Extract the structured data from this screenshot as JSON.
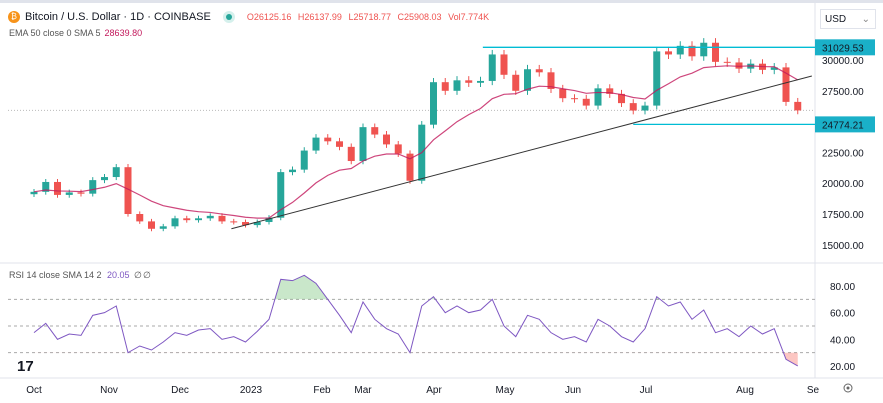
{
  "header": {
    "symbol": "Bitcoin / U.S. Dollar · 1D · COINBASE",
    "logo_letter": "₿",
    "open": "O26125.16",
    "high": "H26137.99",
    "low": "L25718.77",
    "close": "C25908.03",
    "volume": "Vol7.774K"
  },
  "ema_legend": {
    "label": "EMA 50 close 0 SMA 5",
    "value": "28639.80"
  },
  "currency_select": {
    "value": "USD"
  },
  "colors": {
    "up": "#26a69a",
    "down": "#ef5350",
    "ema": "#c2185b",
    "levels": "#00bcd4",
    "trendline": "#333333",
    "rsi": "#7e57c2"
  },
  "chart_data": [
    {
      "type": "candlestick",
      "title": "Bitcoin / U.S. Dollar · 1D · COINBASE",
      "x": [
        "2022-10-01",
        "2022-10-06",
        "2022-10-11",
        "2022-10-16",
        "2022-10-21",
        "2022-10-26",
        "2022-10-31",
        "2022-11-05",
        "2022-11-10",
        "2022-11-15",
        "2022-11-20",
        "2022-11-25",
        "2022-11-30",
        "2022-12-05",
        "2022-12-10",
        "2022-12-15",
        "2022-12-20",
        "2022-12-25",
        "2022-12-30",
        "2023-01-04",
        "2023-01-09",
        "2023-01-14",
        "2023-01-19",
        "2023-01-24",
        "2023-01-29",
        "2023-02-03",
        "2023-02-08",
        "2023-02-13",
        "2023-02-18",
        "2023-02-23",
        "2023-02-28",
        "2023-03-05",
        "2023-03-10",
        "2023-03-15",
        "2023-03-20",
        "2023-03-25",
        "2023-03-30",
        "2023-04-04",
        "2023-04-09",
        "2023-04-14",
        "2023-04-19",
        "2023-04-24",
        "2023-04-29",
        "2023-05-04",
        "2023-05-09",
        "2023-05-14",
        "2023-05-19",
        "2023-05-24",
        "2023-05-29",
        "2023-06-03",
        "2023-06-08",
        "2023-06-13",
        "2023-06-18",
        "2023-06-23",
        "2023-06-28",
        "2023-07-03",
        "2023-07-08",
        "2023-07-13",
        "2023-07-18",
        "2023-07-23",
        "2023-07-28",
        "2023-08-02",
        "2023-08-07",
        "2023-08-12",
        "2023-08-17",
        "2023-08-22"
      ],
      "close": [
        19300,
        20100,
        19050,
        19250,
        19150,
        20250,
        20500,
        21300,
        17500,
        16900,
        16300,
        16500,
        17150,
        17000,
        17150,
        17350,
        16900,
        16850,
        16600,
        16850,
        17200,
        20900,
        21100,
        22650,
        23700,
        23400,
        22950,
        21800,
        24550,
        23950,
        23150,
        22400,
        20200,
        24750,
        28200,
        27500,
        28350,
        28150,
        28300,
        30450,
        28800,
        27500,
        29250,
        29000,
        27650,
        26900,
        26850,
        26300,
        27700,
        27250,
        26500,
        25900,
        26300,
        30700,
        30450,
        31150,
        30300,
        31400,
        29850,
        29800,
        29300,
        29700,
        29200,
        29400,
        26600,
        25908.03
      ],
      "ylim": [
        14000,
        32500
      ],
      "y_ticks": [
        "30000.00",
        "27500.00",
        "22500.00",
        "20000.00",
        "17500.00",
        "15000.00"
      ],
      "x_ticks": [
        "Oct",
        "Nov",
        "Dec",
        "2023",
        "Feb",
        "Mar",
        "Apr",
        "May",
        "Jun",
        "Jul",
        "Aug",
        "Se"
      ],
      "levels": [
        {
          "label": "31029.53",
          "value": 31029.53,
          "from": "2023-04-10"
        },
        {
          "label": "24774.21",
          "value": 24774.21,
          "from": "2023-06-13"
        }
      ],
      "current_price": 25908.03,
      "trendline": [
        [
          "2022-12-24",
          16300
        ],
        [
          "2023-08-28",
          28700
        ]
      ],
      "ema": {
        "name": "EMA 50 close 0 SMA 5",
        "last": 28639.8
      }
    },
    {
      "type": "line",
      "title": "RSI 14 close SMA 14 2",
      "legend_values": [
        "20.05",
        "∅",
        "∅"
      ],
      "values": [
        45,
        52,
        40,
        44,
        43,
        58,
        60,
        65,
        30,
        35,
        32,
        38,
        45,
        43,
        47,
        48,
        40,
        42,
        38,
        46,
        55,
        85,
        84,
        88,
        82,
        70,
        58,
        45,
        68,
        55,
        48,
        44,
        30,
        65,
        72,
        60,
        65,
        60,
        62,
        70,
        50,
        42,
        58,
        55,
        45,
        40,
        42,
        38,
        55,
        50,
        42,
        38,
        48,
        72,
        65,
        68,
        55,
        62,
        45,
        48,
        42,
        50,
        44,
        48,
        25,
        20.05
      ],
      "ylim": [
        10,
        95
      ],
      "y_ticks": [
        "80.00",
        "60.00",
        "40.00",
        "20.00"
      ],
      "bands": [
        70,
        50,
        30
      ]
    }
  ]
}
